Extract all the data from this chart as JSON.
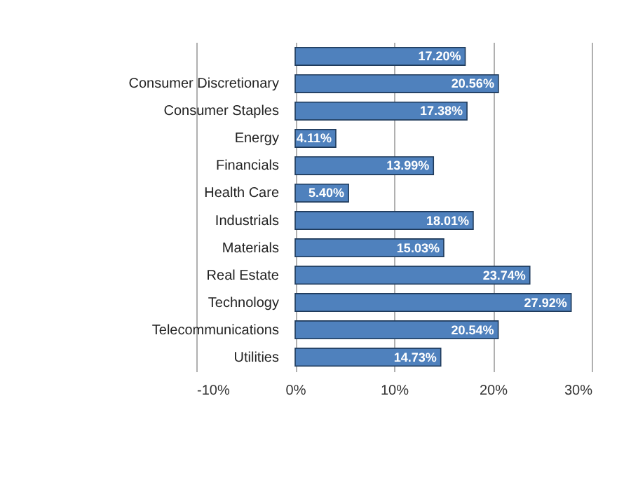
{
  "chart_data": {
    "type": "bar",
    "orientation": "horizontal",
    "categories": [
      null,
      "Consumer Discretionary",
      "Consumer Staples",
      "Energy",
      "Financials",
      "Health Care",
      "Industrials",
      "Materials",
      "Real Estate",
      "Technology",
      "Telecommunications",
      "Utilities"
    ],
    "values": [
      17.2,
      20.56,
      17.38,
      4.11,
      13.99,
      5.4,
      18.01,
      15.03,
      23.74,
      27.92,
      20.54,
      14.73
    ],
    "value_labels": [
      "17.20%",
      "20.56%",
      "17.38%",
      "4.11%",
      "13.99%",
      "5.40%",
      "18.01%",
      "15.03%",
      "23.74%",
      "27.92%",
      "20.54%",
      "14.73%"
    ],
    "color": "#4f81bd",
    "xlim": [
      -10,
      30
    ],
    "xticks": [
      {
        "value": -10,
        "label": "-10%"
      },
      {
        "value": 0,
        "label": "0%"
      },
      {
        "value": 10,
        "label": "10%"
      },
      {
        "value": 20,
        "label": "20%"
      },
      {
        "value": 30,
        "label": "30%"
      }
    ],
    "grid": "x"
  }
}
